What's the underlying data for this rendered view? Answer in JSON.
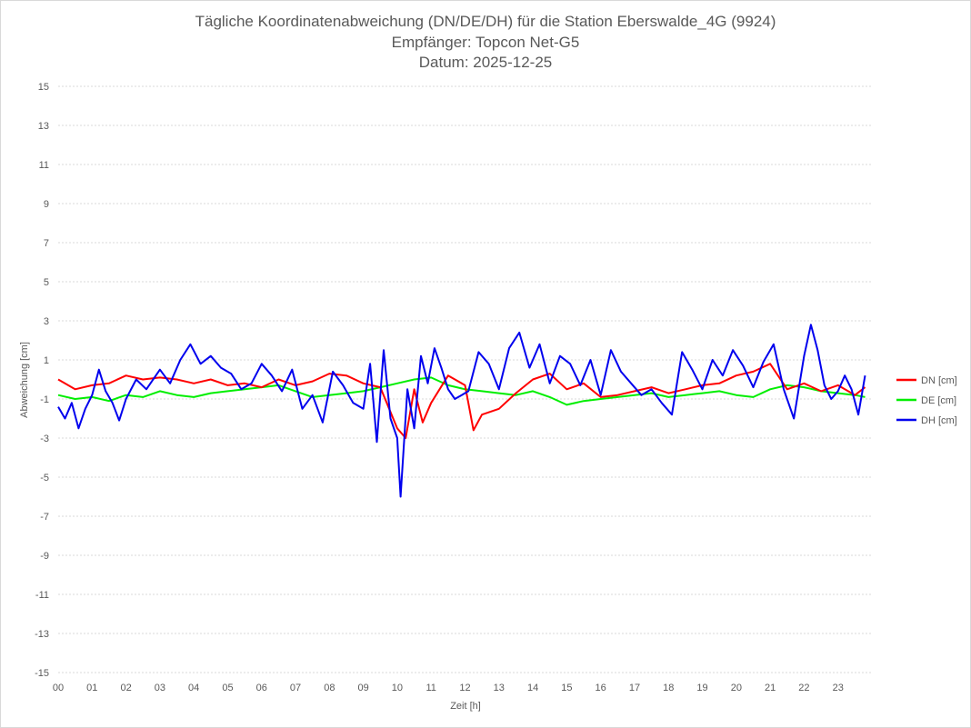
{
  "chart_data": {
    "type": "line",
    "title": [
      "Tägliche Koordinatenabweichung (DN/DE/DH) für die Station Eberswalde_4G (9924)",
      "Empfänger: Topcon Net-G5",
      "Datum: 2025-12-25"
    ],
    "xlabel": "Zeit [h]",
    "ylabel": "Abweichung [cm]",
    "xlim": [
      0,
      24
    ],
    "ylim": [
      -15,
      15
    ],
    "x_tick_labels": [
      "00",
      "01",
      "02",
      "03",
      "04",
      "05",
      "06",
      "07",
      "08",
      "09",
      "10",
      "11",
      "12",
      "13",
      "14",
      "15",
      "16",
      "17",
      "18",
      "19",
      "20",
      "21",
      "22",
      "23"
    ],
    "y_tick_labels": [
      "15",
      "13",
      "11",
      "9",
      "7",
      "5",
      "3",
      "1",
      "-1",
      "-3",
      "-5",
      "-7",
      "-9",
      "-11",
      "-13",
      "-15"
    ],
    "y_tick_values": [
      15,
      13,
      11,
      9,
      7,
      5,
      3,
      1,
      -1,
      -3,
      -5,
      -7,
      -9,
      -11,
      -13,
      -15
    ],
    "grid": "horizontal dotted",
    "legend_position": "right",
    "series": [
      {
        "name": "DN [cm]",
        "color": "#ff0000",
        "x": [
          0,
          0.5,
          1,
          1.5,
          2,
          2.5,
          3,
          3.5,
          4,
          4.5,
          5,
          5.5,
          6,
          6.5,
          7,
          7.5,
          8,
          8.5,
          9,
          9.5,
          10,
          10.25,
          10.5,
          10.75,
          11,
          11.5,
          12,
          12.25,
          12.5,
          13,
          13.5,
          14,
          14.5,
          15,
          15.5,
          16,
          16.5,
          17,
          17.5,
          18,
          18.5,
          19,
          19.5,
          20,
          20.5,
          21,
          21.5,
          22,
          22.5,
          23,
          23.5,
          23.8
        ],
        "values": [
          0,
          -0.5,
          -0.3,
          -0.2,
          0.2,
          0,
          0.1,
          0,
          -0.2,
          0,
          -0.3,
          -0.2,
          -0.4,
          0,
          -0.3,
          -0.1,
          0.3,
          0.2,
          -0.2,
          -0.4,
          -2.5,
          -3,
          -0.5,
          -2.2,
          -1.2,
          0.2,
          -0.3,
          -2.6,
          -1.8,
          -1.5,
          -0.7,
          0,
          0.3,
          -0.5,
          -0.2,
          -0.9,
          -0.8,
          -0.6,
          -0.4,
          -0.7,
          -0.5,
          -0.3,
          -0.2,
          0.2,
          0.4,
          0.8,
          -0.5,
          -0.2,
          -0.6,
          -0.3,
          -0.8,
          -0.4
        ]
      },
      {
        "name": "DE [cm]",
        "color": "#00ee00",
        "x": [
          0,
          0.5,
          1,
          1.5,
          2,
          2.5,
          3,
          3.5,
          4,
          4.5,
          5,
          5.5,
          6,
          6.5,
          7,
          7.5,
          8,
          8.5,
          9,
          9.5,
          10,
          10.5,
          11,
          11.5,
          12,
          12.5,
          13,
          13.5,
          14,
          14.5,
          15,
          15.5,
          16,
          16.5,
          17,
          17.5,
          18,
          18.5,
          19,
          19.5,
          20,
          20.5,
          21,
          21.5,
          22,
          22.5,
          23,
          23.5,
          23.8
        ],
        "values": [
          -0.8,
          -1,
          -0.9,
          -1.1,
          -0.8,
          -0.9,
          -0.6,
          -0.8,
          -0.9,
          -0.7,
          -0.6,
          -0.5,
          -0.4,
          -0.3,
          -0.6,
          -0.9,
          -0.8,
          -0.7,
          -0.6,
          -0.4,
          -0.2,
          0,
          0.1,
          -0.3,
          -0.5,
          -0.6,
          -0.7,
          -0.8,
          -0.6,
          -0.9,
          -1.3,
          -1.1,
          -1,
          -0.9,
          -0.8,
          -0.7,
          -0.9,
          -0.8,
          -0.7,
          -0.6,
          -0.8,
          -0.9,
          -0.5,
          -0.3,
          -0.4,
          -0.6,
          -0.7,
          -0.8,
          -0.9
        ]
      },
      {
        "name": "DH [cm]",
        "color": "#0000ee",
        "x": [
          0,
          0.2,
          0.4,
          0.6,
          0.8,
          1,
          1.2,
          1.4,
          1.6,
          1.8,
          2,
          2.3,
          2.6,
          3,
          3.3,
          3.6,
          3.9,
          4.2,
          4.5,
          4.8,
          5.1,
          5.4,
          5.7,
          6,
          6.3,
          6.6,
          6.9,
          7.2,
          7.5,
          7.8,
          8.1,
          8.4,
          8.7,
          9,
          9.2,
          9.4,
          9.6,
          9.8,
          10,
          10.1,
          10.3,
          10.5,
          10.7,
          10.9,
          11.1,
          11.3,
          11.5,
          11.7,
          11.9,
          12.1,
          12.4,
          12.7,
          13,
          13.3,
          13.6,
          13.9,
          14.2,
          14.5,
          14.8,
          15.1,
          15.4,
          15.7,
          16,
          16.3,
          16.6,
          16.9,
          17.2,
          17.5,
          17.8,
          18.1,
          18.4,
          18.7,
          19,
          19.3,
          19.6,
          19.9,
          20.2,
          20.5,
          20.8,
          21.1,
          21.4,
          21.7,
          22,
          22.2,
          22.4,
          22.6,
          22.8,
          23,
          23.2,
          23.4,
          23.6,
          23.8
        ],
        "values": [
          -1.4,
          -2,
          -1.2,
          -2.5,
          -1.5,
          -0.8,
          0.5,
          -0.6,
          -1.2,
          -2.1,
          -1,
          0,
          -0.5,
          0.5,
          -0.2,
          1,
          1.8,
          0.8,
          1.2,
          0.6,
          0.3,
          -0.5,
          -0.2,
          0.8,
          0.2,
          -0.6,
          0.5,
          -1.5,
          -0.8,
          -2.2,
          0.4,
          -0.3,
          -1.2,
          -1.5,
          0.8,
          -3.2,
          1.5,
          -2,
          -3,
          -6,
          -0.5,
          -2.5,
          1.2,
          -0.2,
          1.6,
          0.6,
          -0.5,
          -1,
          -0.8,
          -0.6,
          1.4,
          0.8,
          -0.5,
          1.6,
          2.4,
          0.6,
          1.8,
          -0.2,
          1.2,
          0.8,
          -0.3,
          1,
          -0.8,
          1.5,
          0.4,
          -0.2,
          -0.8,
          -0.5,
          -1.2,
          -1.8,
          1.4,
          0.5,
          -0.5,
          1,
          0.2,
          1.5,
          0.7,
          -0.4,
          0.9,
          1.8,
          -0.5,
          -2,
          1.2,
          2.8,
          1.5,
          -0.3,
          -1,
          -0.6,
          0.2,
          -0.5,
          -1.8,
          0.2
        ]
      }
    ]
  }
}
